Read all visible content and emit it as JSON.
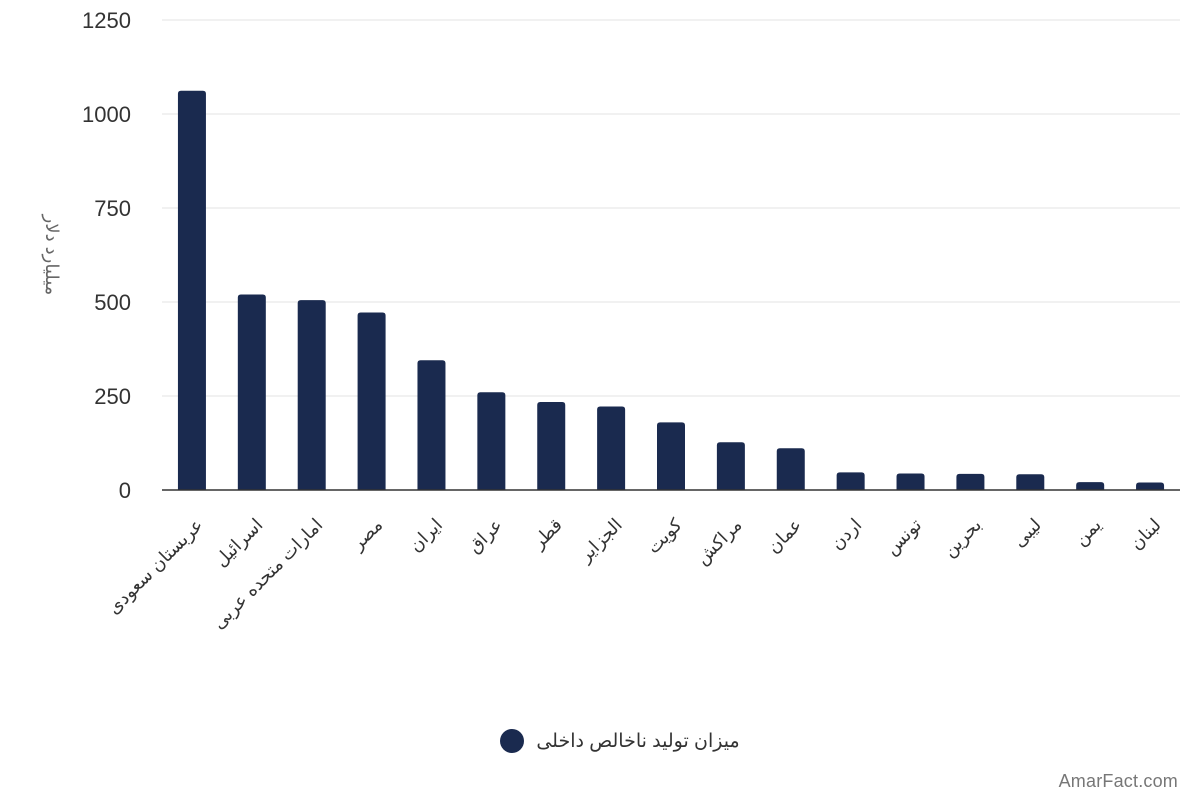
{
  "chart_data": {
    "type": "bar",
    "ylabel": "میلیارد دلار",
    "ylim": [
      0,
      1250
    ],
    "yticks": [
      0,
      250,
      500,
      750,
      1000,
      1250
    ],
    "grid": true,
    "legend_position": "bottom",
    "categories": [
      "عربستان سعودی",
      "اسرائیل",
      "امارات متحده عربی",
      "مصر",
      "ایران",
      "عراق",
      "قطر",
      "الجزایر",
      "کویت",
      "مراکش",
      "عمان",
      "اردن",
      "تونس",
      "بحرین",
      "لیبی",
      "یمن",
      "لبنان"
    ],
    "series": [
      {
        "name": "میزان تولید ناخالص داخلی",
        "color": "#1a2a4f",
        "values": [
          1062,
          520,
          505,
          472,
          345,
          260,
          234,
          222,
          180,
          127,
          111,
          47,
          44,
          43,
          42,
          21,
          20
        ]
      }
    ]
  },
  "legend": {
    "label": "میزان تولید ناخالص داخلی",
    "color": "#1a2a4f"
  },
  "watermark": "AmarFact.com"
}
